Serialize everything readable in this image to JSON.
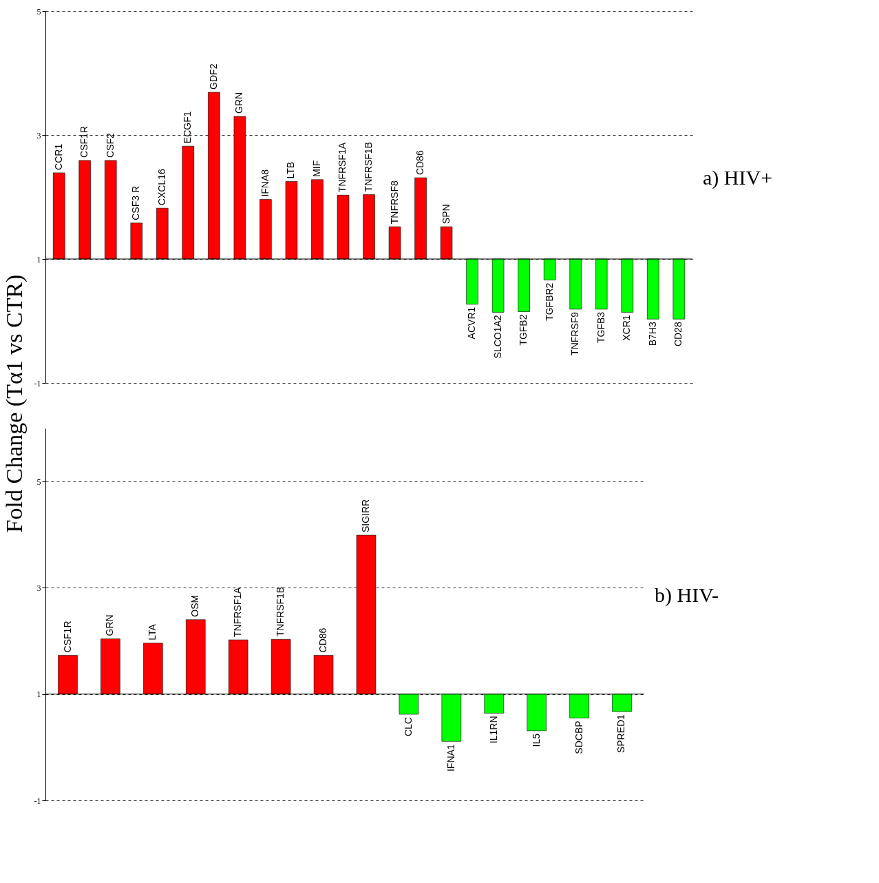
{
  "chart_data": [
    {
      "type": "bar",
      "title": "a) HIV+",
      "ylabel": "Fold Change  (Tα1 vs CTR)",
      "categories": [
        "CCR1",
        "CSF1R",
        "CSF2",
        "CSF3 R",
        "CXCL16",
        "ECGF1",
        "GDF2",
        "GRN",
        "IFNA8",
        "LTB",
        "MIF",
        "TNFRSF1A",
        "TNFRSF1B",
        "TNFRSF8",
        "CD86",
        "SPN",
        "ACVR1",
        "SLCO1A2",
        "TGFB2",
        "TGFBR2",
        "TNFRSF9",
        "TGFB3",
        "XCR1",
        "B7H3",
        "CD28"
      ],
      "base": [
        1,
        1,
        1,
        1,
        1,
        1,
        1,
        1,
        1,
        1,
        1,
        1,
        1,
        1,
        1,
        1,
        1,
        1,
        1,
        1,
        1,
        1,
        1,
        1,
        1
      ],
      "values": [
        1.39,
        1.59,
        1.59,
        0.58,
        0.82,
        1.82,
        2.69,
        2.3,
        0.96,
        1.25,
        1.28,
        1.03,
        1.04,
        0.52,
        1.31,
        0.52,
        -0.73,
        -0.86,
        -0.85,
        -0.34,
        -0.81,
        -0.81,
        -0.86,
        -0.97,
        -0.97
      ],
      "colors": [
        "#ff0000",
        "#ff0000",
        "#ff0000",
        "#ff0000",
        "#ff0000",
        "#ff0000",
        "#ff0000",
        "#ff0000",
        "#ff0000",
        "#ff0000",
        "#ff0000",
        "#ff0000",
        "#ff0000",
        "#ff0000",
        "#ff0000",
        "#ff0000",
        "#00ff00",
        "#00ff00",
        "#00ff00",
        "#00ff00",
        "#00ff00",
        "#00ff00",
        "#00ff00",
        "#00ff00",
        "#00ff00"
      ],
      "ylim": [
        -1,
        5
      ],
      "yticks": [
        -1,
        1,
        3,
        5
      ],
      "grid": "y",
      "ref_lines": [
        {
          "axis": "y",
          "value": 1
        }
      ]
    },
    {
      "type": "bar",
      "title": "b) HIV-",
      "categories": [
        "CSF1R",
        "GRN",
        "LTA",
        "OSM",
        "TNFRSF1A",
        "TNFRSF1B",
        "CD86",
        "SIGIRR",
        "CLC",
        "IFNA1",
        "IL1RN",
        "IL5",
        "SDCBP",
        "SPRED1"
      ],
      "base": [
        1,
        1,
        1,
        1,
        1,
        1,
        1,
        1,
        1,
        1,
        1,
        1,
        1,
        1
      ],
      "values": [
        0.73,
        1.04,
        0.96,
        1.4,
        1.02,
        1.03,
        0.73,
        2.99,
        -0.38,
        -0.89,
        -0.36,
        -0.69,
        -0.45,
        -0.33
      ],
      "colors": [
        "#ff0000",
        "#ff0000",
        "#ff0000",
        "#ff0000",
        "#ff0000",
        "#ff0000",
        "#ff0000",
        "#ff0000",
        "#00ff00",
        "#00ff00",
        "#00ff00",
        "#00ff00",
        "#00ff00",
        "#00ff00"
      ],
      "ylim": [
        -1,
        6
      ],
      "yticks": [
        -1,
        1,
        3,
        5
      ],
      "grid": "y",
      "ref_lines": [
        {
          "axis": "y",
          "value": 1
        }
      ]
    }
  ]
}
